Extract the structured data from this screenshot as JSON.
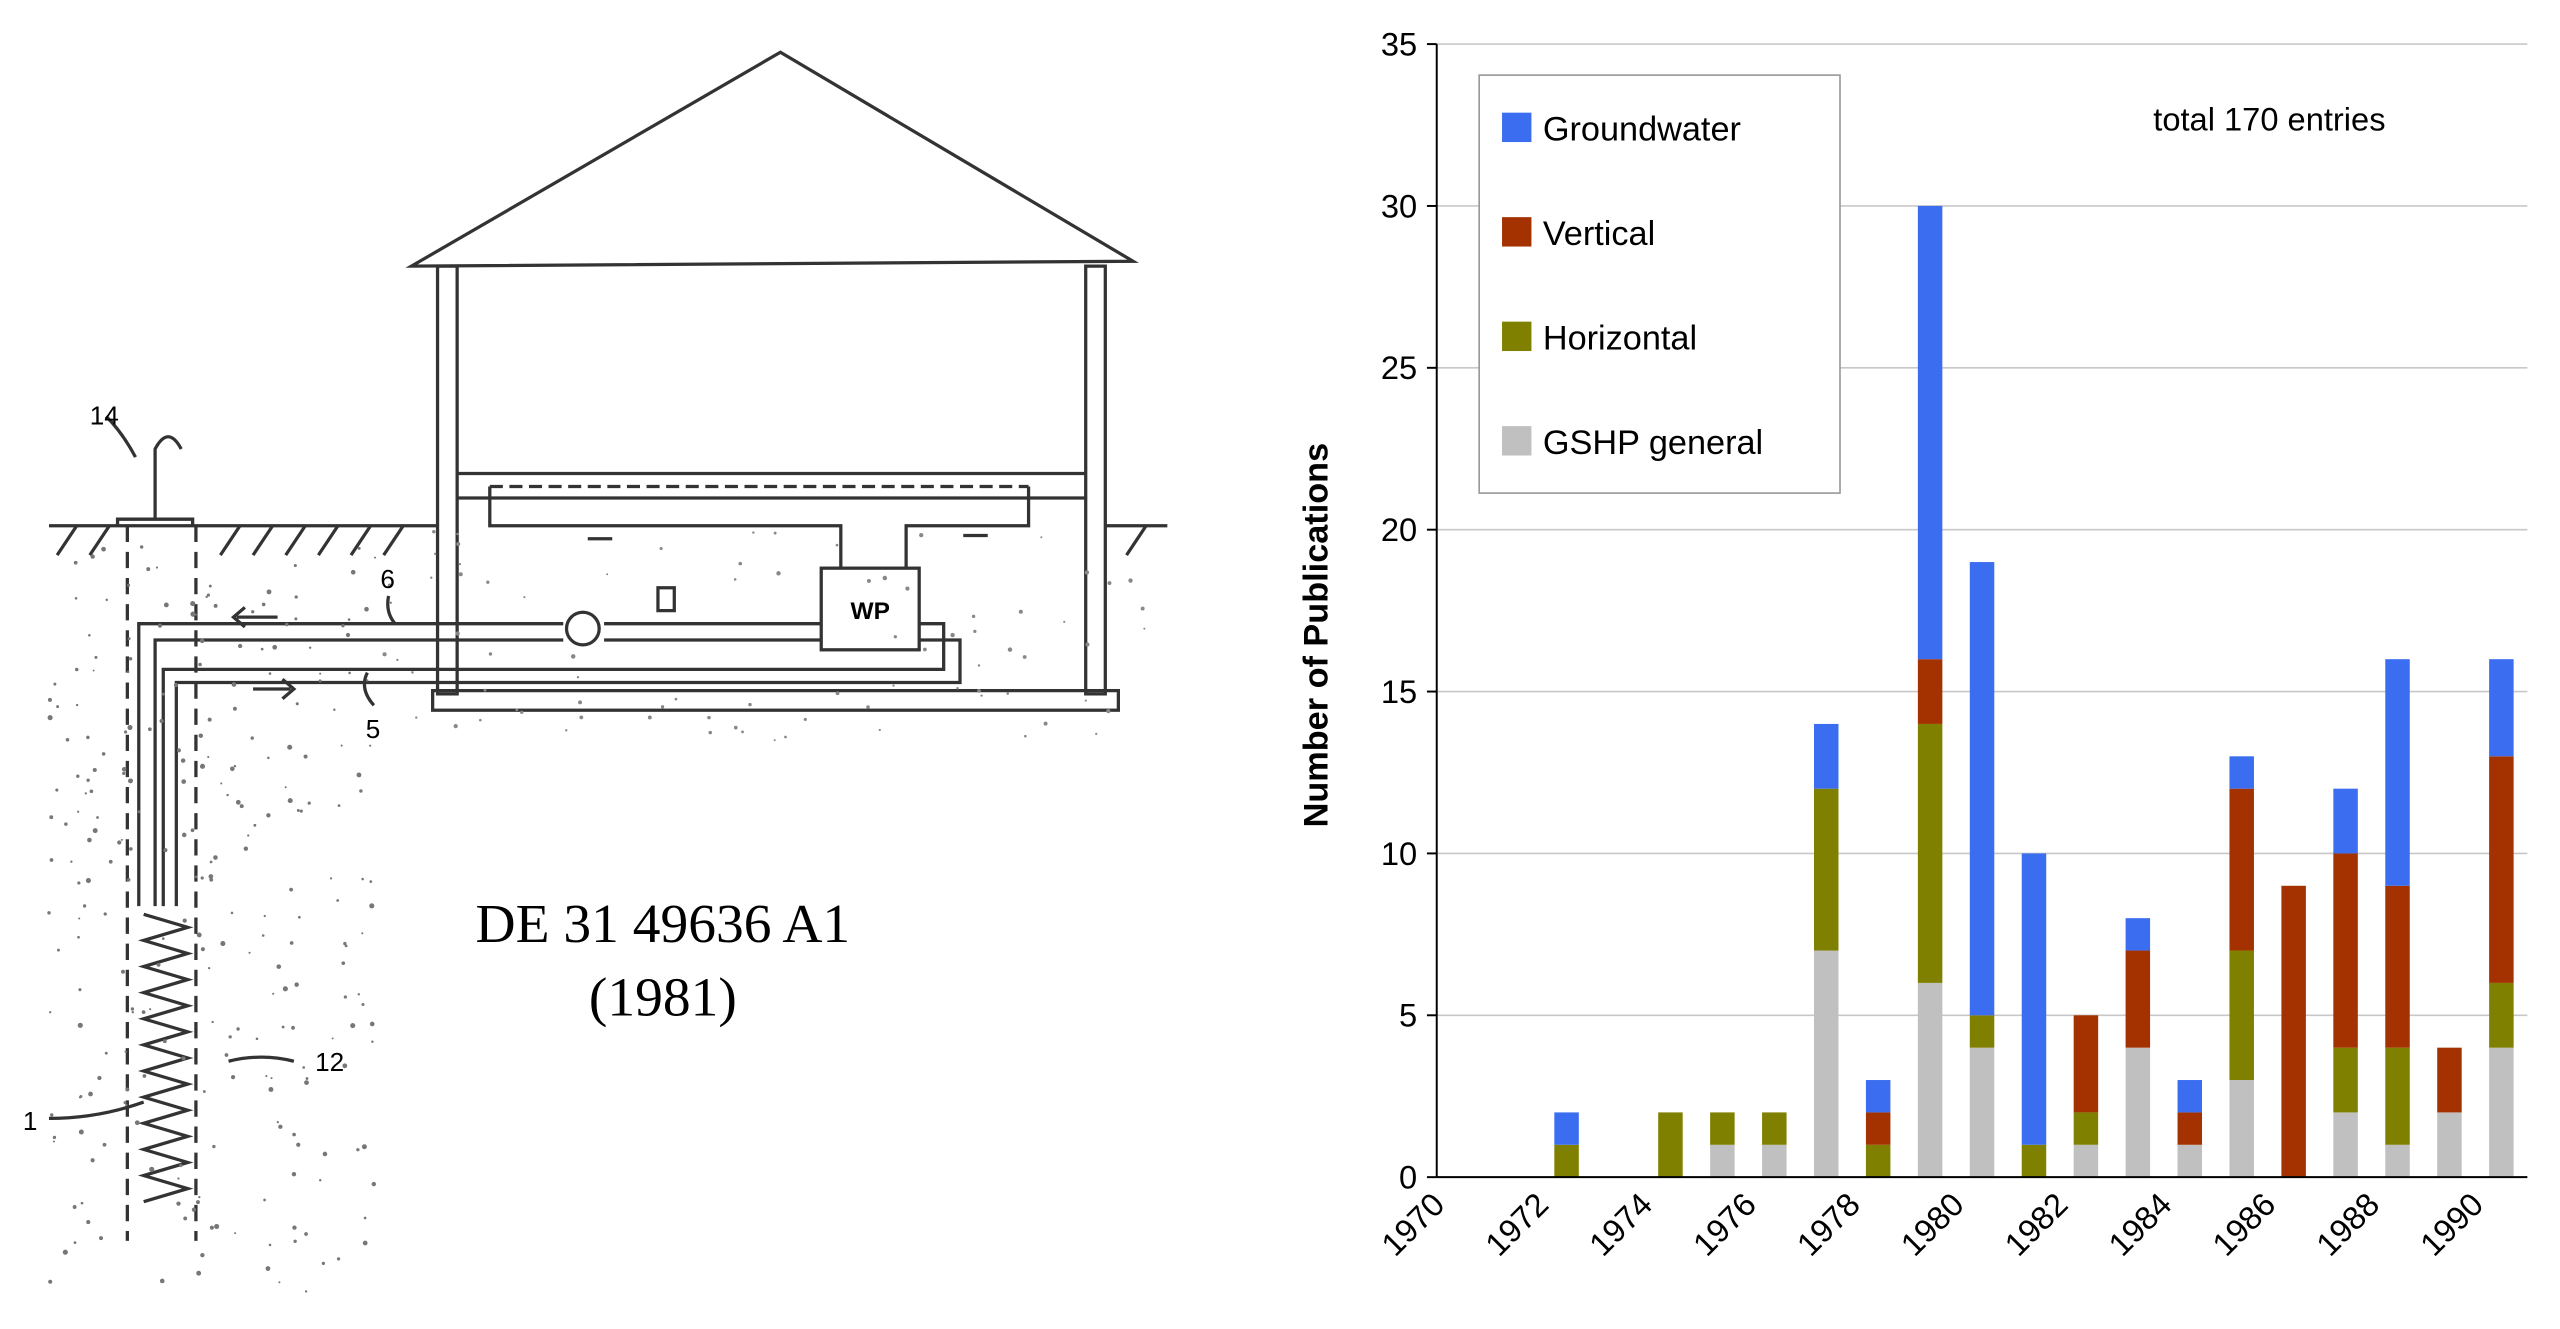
{
  "drawing": {
    "caption_line1": "DE 31 49636 A1",
    "caption_line2": "(1981)",
    "unit_label": "WP",
    "callouts": [
      "14",
      "6",
      "5",
      "12",
      "1"
    ]
  },
  "chart_data": {
    "type": "stacked_bar",
    "y_label": "Number of Publications",
    "annotation": "total 170 entries",
    "categories": [
      "1970",
      null,
      "1972",
      null,
      "1974",
      null,
      "1976",
      null,
      "1978",
      null,
      "1980",
      null,
      "1982",
      null,
      "1984",
      null,
      "1986",
      null,
      "1988",
      null,
      "1990"
    ],
    "series": [
      {
        "name": "GSHP general",
        "color": "#c0c0c0",
        "values": [
          0,
          0,
          0,
          0,
          0,
          1,
          1,
          7,
          0,
          6,
          4,
          0,
          1,
          4,
          1,
          3,
          0,
          2,
          1,
          2,
          4
        ]
      },
      {
        "name": "Horizontal",
        "color": "#808000",
        "values": [
          0,
          0,
          1,
          0,
          2,
          1,
          1,
          5,
          1,
          8,
          1,
          1,
          1,
          0,
          0,
          4,
          0,
          2,
          3,
          0,
          2
        ]
      },
      {
        "name": "Vertical",
        "color": "#a33200",
        "values": [
          0,
          0,
          0,
          0,
          0,
          0,
          0,
          0,
          1,
          2,
          0,
          0,
          3,
          3,
          1,
          5,
          9,
          6,
          5,
          2,
          7
        ]
      },
      {
        "name": "Groundwater",
        "color": "#3a6df0",
        "values": [
          0,
          0,
          1,
          0,
          0,
          0,
          0,
          2,
          1,
          14,
          14,
          9,
          0,
          1,
          1,
          1,
          0,
          2,
          7,
          0,
          3
        ]
      }
    ],
    "ylim": [
      0,
      35
    ],
    "yticks": [
      0,
      5,
      10,
      15,
      20,
      25,
      30,
      35
    ],
    "grid": true,
    "legend": "upper-left"
  }
}
